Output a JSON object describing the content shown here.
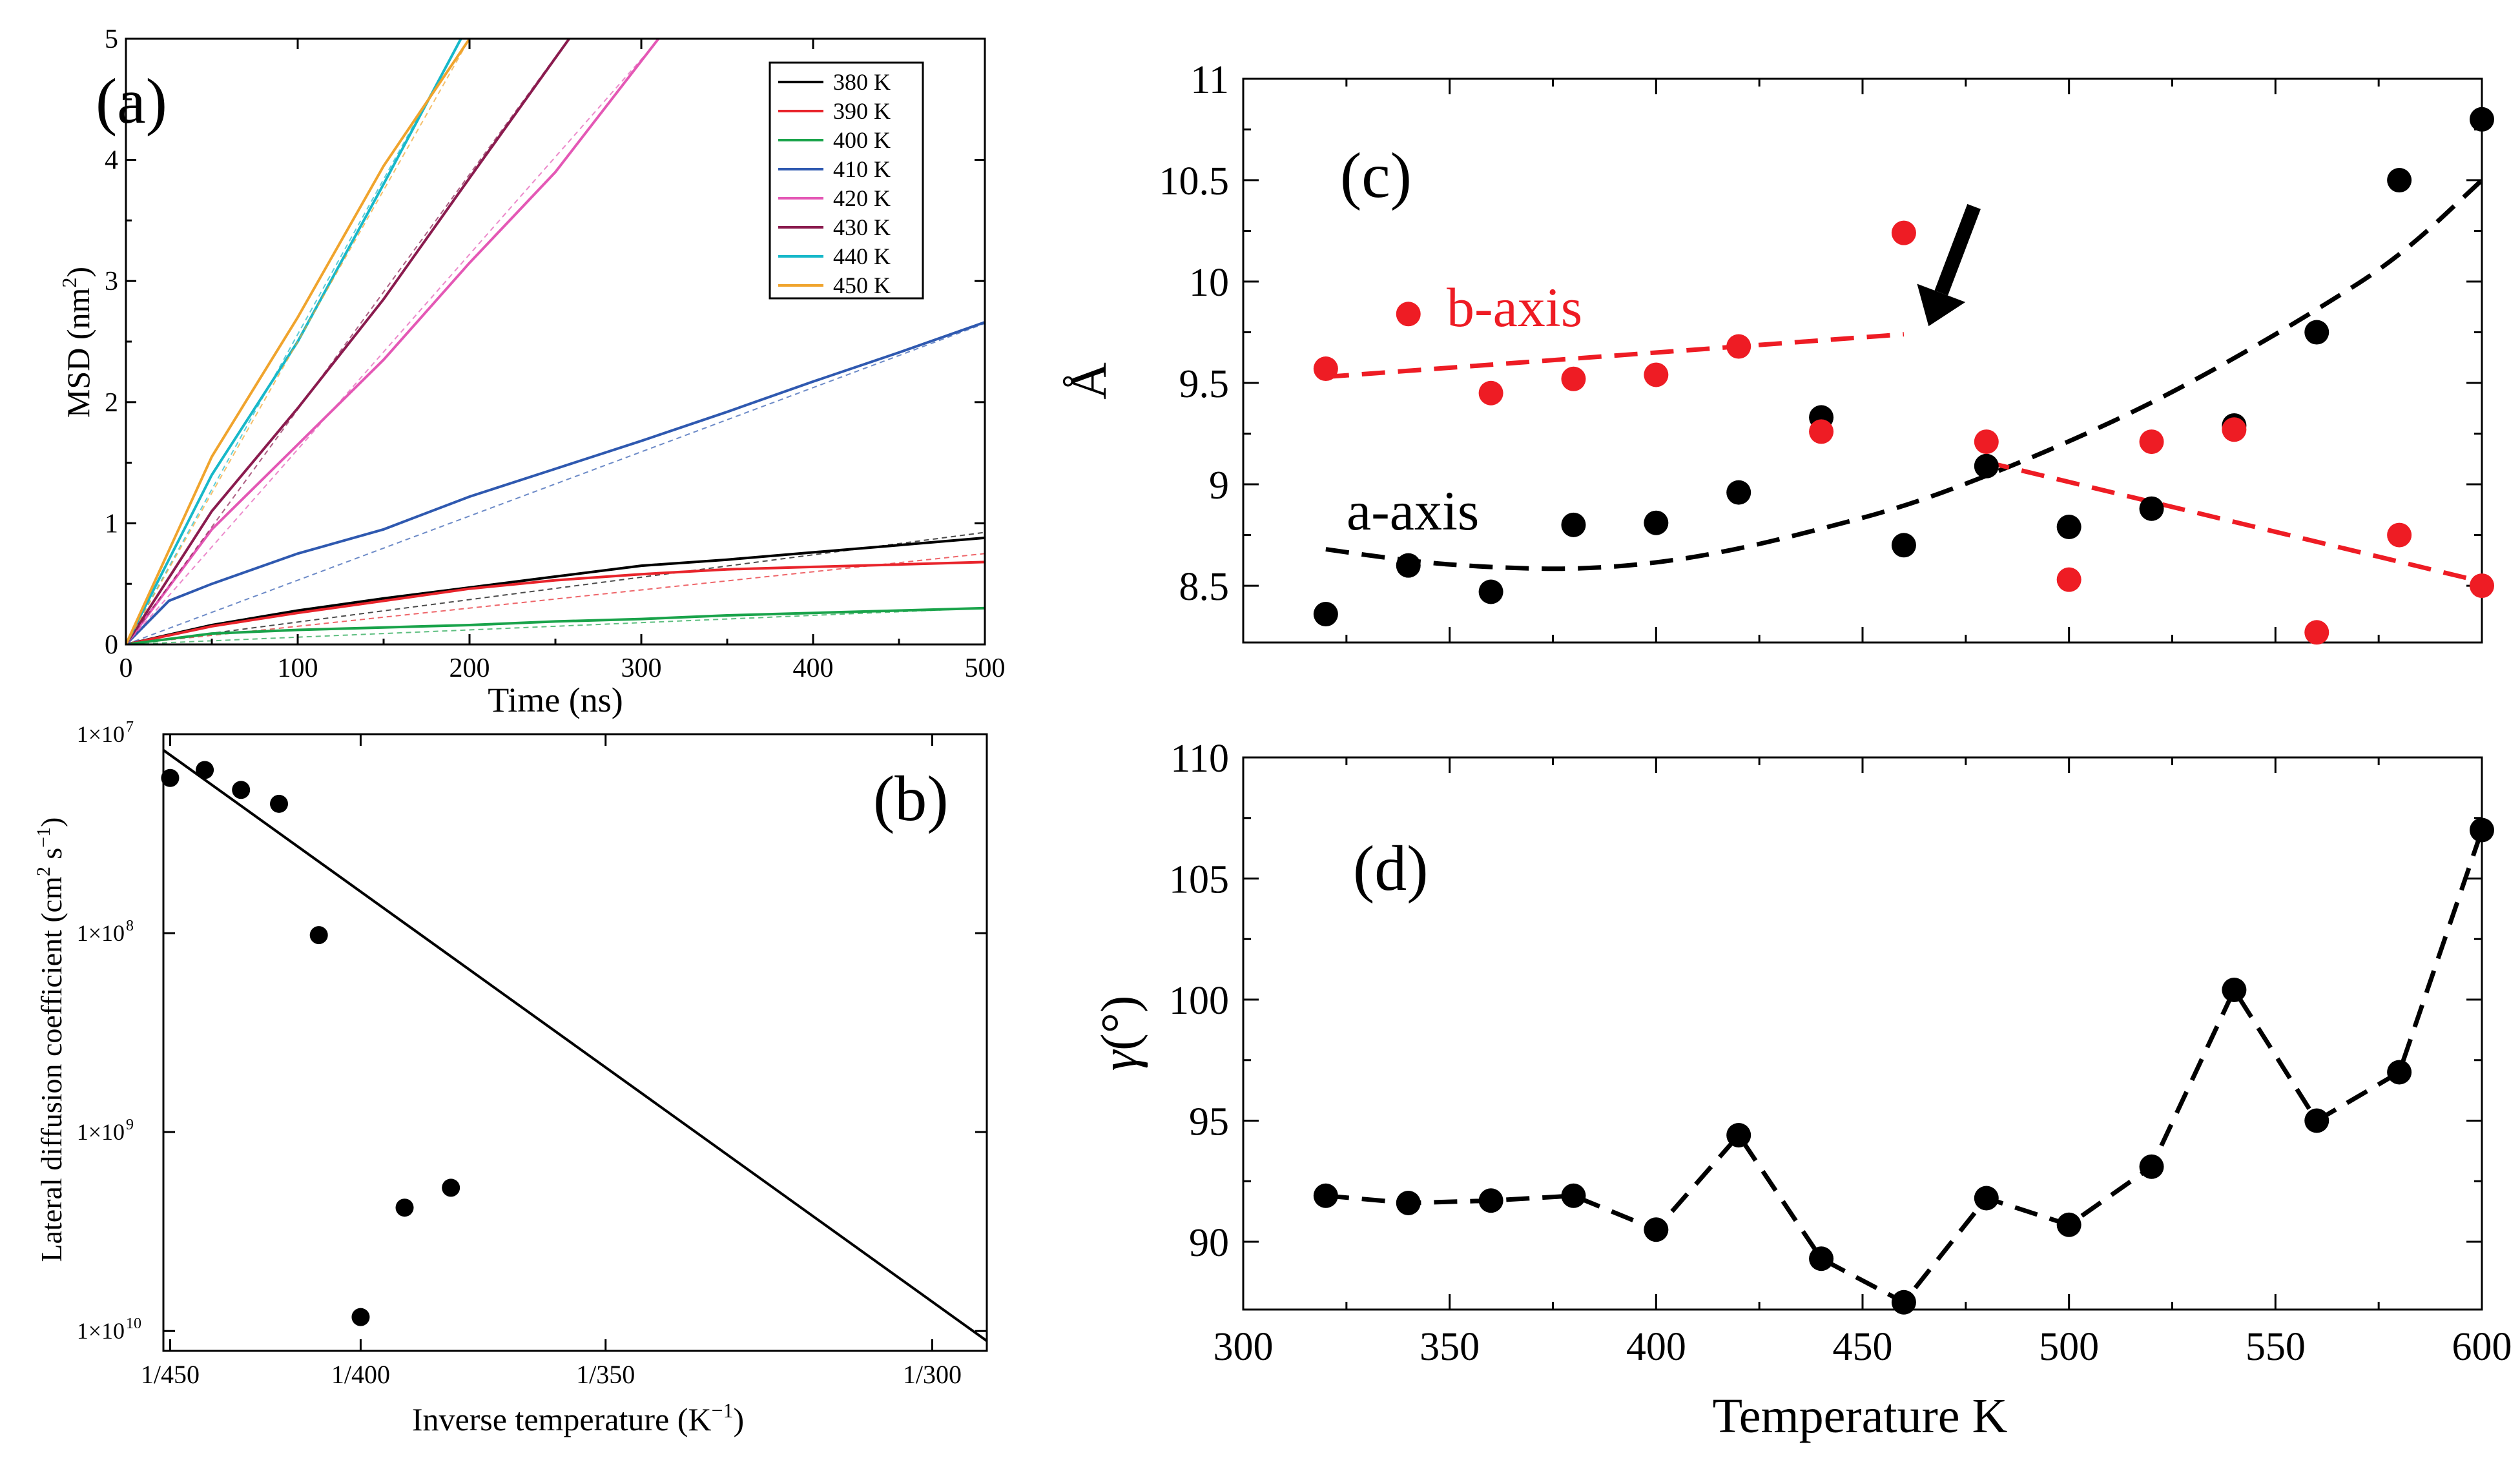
{
  "chart_data": [
    {
      "id": "a",
      "panel_label": "(a)",
      "type": "line",
      "xlabel": "Time (ns)",
      "ylabel_main": "MSD (nm",
      "ylabel_sup": "2",
      "ylabel_close": ")",
      "xlim": [
        0,
        500
      ],
      "ylim": [
        0,
        5
      ],
      "xticks": [
        0,
        100,
        200,
        300,
        400,
        500
      ],
      "yticks": [
        0,
        1,
        2,
        3,
        4,
        5
      ],
      "legend_position": "top-right",
      "series": [
        {
          "name": "380 K",
          "color": "#000000",
          "x": [
            0,
            50,
            100,
            150,
            200,
            250,
            300,
            350,
            400,
            450,
            500
          ],
          "y": [
            0,
            0.16,
            0.28,
            0.38,
            0.47,
            0.56,
            0.65,
            0.7,
            0.76,
            0.82,
            0.88
          ],
          "fit_slope": 0.00185
        },
        {
          "name": "390 K",
          "color": "#e8242b",
          "x": [
            0,
            50,
            100,
            150,
            200,
            250,
            300,
            350,
            400,
            450,
            500
          ],
          "y": [
            0,
            0.15,
            0.26,
            0.36,
            0.46,
            0.53,
            0.58,
            0.62,
            0.64,
            0.66,
            0.68
          ],
          "fit_slope": 0.0015
        },
        {
          "name": "400 K",
          "color": "#19a34a",
          "x": [
            0,
            50,
            100,
            150,
            200,
            250,
            300,
            350,
            400,
            450,
            500
          ],
          "y": [
            0,
            0.09,
            0.12,
            0.14,
            0.16,
            0.19,
            0.21,
            0.24,
            0.26,
            0.28,
            0.3
          ],
          "fit_slope": 0.0006
        },
        {
          "name": "410 K",
          "color": "#2f59b0",
          "x": [
            0,
            25,
            50,
            100,
            150,
            200,
            250,
            300,
            350,
            400,
            450,
            500
          ],
          "y": [
            0,
            0.36,
            0.5,
            0.75,
            0.95,
            1.22,
            1.45,
            1.68,
            1.92,
            2.17,
            2.41,
            2.66
          ],
          "fit_slope": 0.0053
        },
        {
          "name": "420 K",
          "color": "#e458b5",
          "x": [
            0,
            50,
            100,
            150,
            200,
            250,
            310
          ],
          "y": [
            0,
            0.95,
            1.65,
            2.35,
            3.15,
            3.9,
            5.0
          ],
          "fit_slope": 0.0161
        },
        {
          "name": "430 K",
          "color": "#8a1b4e",
          "x": [
            0,
            50,
            100,
            150,
            200,
            258
          ],
          "y": [
            0,
            1.1,
            1.95,
            2.85,
            3.85,
            5.0
          ],
          "fit_slope": 0.0194
        },
        {
          "name": "440 K",
          "color": "#17b8c9",
          "x": [
            0,
            50,
            100,
            150,
            195
          ],
          "y": [
            0,
            1.4,
            2.5,
            3.8,
            5.0
          ],
          "fit_slope": 0.0256
        },
        {
          "name": "450 K",
          "color": "#f0a42d",
          "x": [
            0,
            50,
            100,
            150,
            200
          ],
          "y": [
            0,
            1.55,
            2.7,
            3.95,
            5.0
          ],
          "fit_slope": 0.025
        }
      ]
    },
    {
      "id": "b",
      "panel_label": "(b)",
      "type": "scatter",
      "scale_y": "log",
      "xlabel_main": "Inverse temperature (K",
      "xlabel_sup": "−1",
      "xlabel_close": ")",
      "ylabel_main": "Lateral diffusion coefficient (cm",
      "ylabel_sup1": "2",
      "ylabel_mid": " s",
      "ylabel_sup2": "−1",
      "ylabel_close": ")",
      "xtick_labels": [
        "1/450",
        "1/400",
        "1/350",
        "1/300"
      ],
      "xtick_temps": [
        450,
        400,
        350,
        300
      ],
      "ytick_labels": [
        "1×10",
        "1×10",
        "1×10",
        "1×10"
      ],
      "ytick_exps": [
        "7",
        "8",
        "9",
        "10"
      ],
      "ytick_logs": [
        -7,
        -8,
        -9,
        -10
      ],
      "xlim_temp": [
        452,
        293
      ],
      "ylim_log": [
        -7,
        -10.1
      ],
      "points_temp": [
        450,
        440,
        430,
        420,
        410,
        400,
        390,
        380
      ],
      "points_log": [
        -7.22,
        -7.18,
        -7.28,
        -7.35,
        -8.01,
        -9.93,
        -9.38,
        -9.28
      ],
      "fit_line": {
        "x_temp": [
          452,
          293
        ],
        "y_log": [
          -7.08,
          -10.05
        ]
      }
    },
    {
      "id": "c",
      "panel_label": "(c)",
      "type": "scatter",
      "ylabel": "Å",
      "xlim": [
        300,
        600
      ],
      "ylim": [
        8.22,
        11
      ],
      "yticks": [
        8.5,
        9,
        9.5,
        10,
        10.5,
        11
      ],
      "ytick_labels": [
        "8.5",
        "9",
        "9.5",
        "10",
        "10.5",
        "11"
      ],
      "series": [
        {
          "name": "a-axis",
          "color": "#000000",
          "x": [
            320,
            340,
            360,
            380,
            400,
            420,
            440,
            460,
            480,
            500,
            520,
            540,
            560,
            580,
            600
          ],
          "y": [
            8.36,
            8.6,
            8.47,
            8.8,
            8.81,
            8.96,
            9.33,
            8.7,
            9.09,
            8.79,
            8.88,
            9.29,
            9.75,
            10.5,
            10.8
          ]
        },
        {
          "name": "b-axis",
          "color": "#ee1c24",
          "x": [
            320,
            340,
            360,
            380,
            400,
            420,
            440,
            460,
            480,
            500,
            520,
            540,
            560,
            580,
            600
          ],
          "y": [
            9.57,
            9.84,
            9.45,
            9.52,
            9.54,
            9.68,
            9.26,
            10.24,
            9.21,
            8.53,
            9.21,
            9.27,
            8.27,
            8.75,
            8.5
          ]
        }
      ],
      "fits": [
        {
          "name": "a-axis-fit",
          "color": "#000000",
          "x": [
            320,
            340,
            360,
            380,
            400,
            420,
            440,
            460,
            480,
            500,
            520,
            540,
            560,
            580,
            600
          ],
          "y": [
            8.68,
            8.62,
            8.59,
            8.58,
            8.61,
            8.68,
            8.78,
            8.89,
            9.04,
            9.21,
            9.4,
            9.62,
            9.86,
            10.12,
            10.5
          ]
        },
        {
          "name": "b-axis-fit-low",
          "color": "#ee1c24",
          "x": [
            320,
            460
          ],
          "y": [
            9.53,
            9.74
          ]
        },
        {
          "name": "b-axis-fit-high",
          "color": "#ee1c24",
          "x": [
            480,
            600
          ],
          "y": [
            9.11,
            8.52
          ]
        }
      ],
      "annotations": [
        {
          "text": "b-axis",
          "color": "#ee1c24"
        },
        {
          "text": "a-axis",
          "color": "#000000"
        }
      ],
      "arrow": {
        "from": [
          477,
          10.37
        ],
        "to": [
          466,
          9.78
        ]
      }
    },
    {
      "id": "d",
      "panel_label": "(d)",
      "type": "line",
      "xlabel": "Temperature K",
      "ylabel_main": "γ",
      "ylabel_unit": "(°)",
      "xlim": [
        300,
        600
      ],
      "ylim": [
        87.2,
        110
      ],
      "xticks": [
        300,
        350,
        400,
        450,
        500,
        550,
        600
      ],
      "yticks": [
        90,
        95,
        100,
        105,
        110
      ],
      "series": [
        {
          "name": "gamma",
          "color": "#000000",
          "x": [
            320,
            340,
            360,
            380,
            400,
            420,
            440,
            460,
            480,
            500,
            520,
            540,
            560,
            580,
            600
          ],
          "y": [
            91.9,
            91.6,
            91.7,
            91.9,
            90.5,
            94.4,
            89.3,
            87.5,
            91.8,
            90.7,
            93.1,
            100.4,
            95.0,
            97.0,
            107.0
          ]
        }
      ]
    }
  ]
}
